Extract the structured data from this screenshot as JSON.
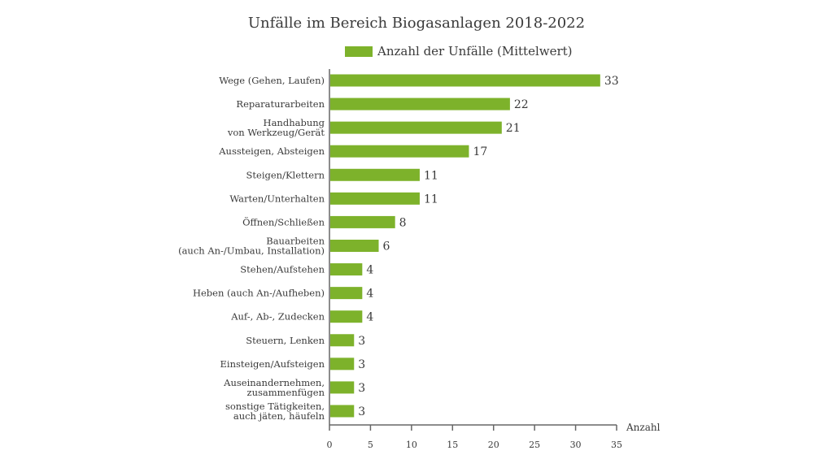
{
  "chart_data": {
    "type": "bar",
    "orientation": "horizontal",
    "title": "Unfälle im Bereich Biogasanlagen 2018-2022",
    "xlabel": "Anzahl",
    "ylabel": "",
    "xlim": [
      0,
      35
    ],
    "xticks": [
      0,
      5,
      10,
      15,
      20,
      25,
      30,
      35
    ],
    "legend_position": "top-center",
    "grid": false,
    "bar_color": "#7db22b",
    "categories": [
      [
        "Wege (Gehen, Laufen)"
      ],
      [
        "Reparaturarbeiten"
      ],
      [
        "Handhabung",
        "von Werkzeug/Gerät"
      ],
      [
        "Aussteigen, Absteigen"
      ],
      [
        "Steigen/Klettern"
      ],
      [
        "Warten/Unterhalten"
      ],
      [
        "Öffnen/Schließen"
      ],
      [
        "Bauarbeiten",
        "(auch An-/Umbau, Installation)"
      ],
      [
        "Stehen/Aufstehen"
      ],
      [
        "Heben (auch An-/Aufheben)"
      ],
      [
        "Auf-, Ab-, Zudecken"
      ],
      [
        "Steuern, Lenken"
      ],
      [
        "Einsteigen/Aufsteigen"
      ],
      [
        "Auseinandernehmen,",
        "zusammenfügen"
      ],
      [
        "sonstige Tätigkeiten,",
        "auch jäten, häufeln"
      ]
    ],
    "series": [
      {
        "name": "Anzahl der Unfälle (Mittelwert)",
        "values": [
          33,
          22,
          21,
          17,
          11,
          11,
          8,
          6,
          4,
          4,
          4,
          3,
          3,
          3,
          3
        ]
      }
    ]
  }
}
